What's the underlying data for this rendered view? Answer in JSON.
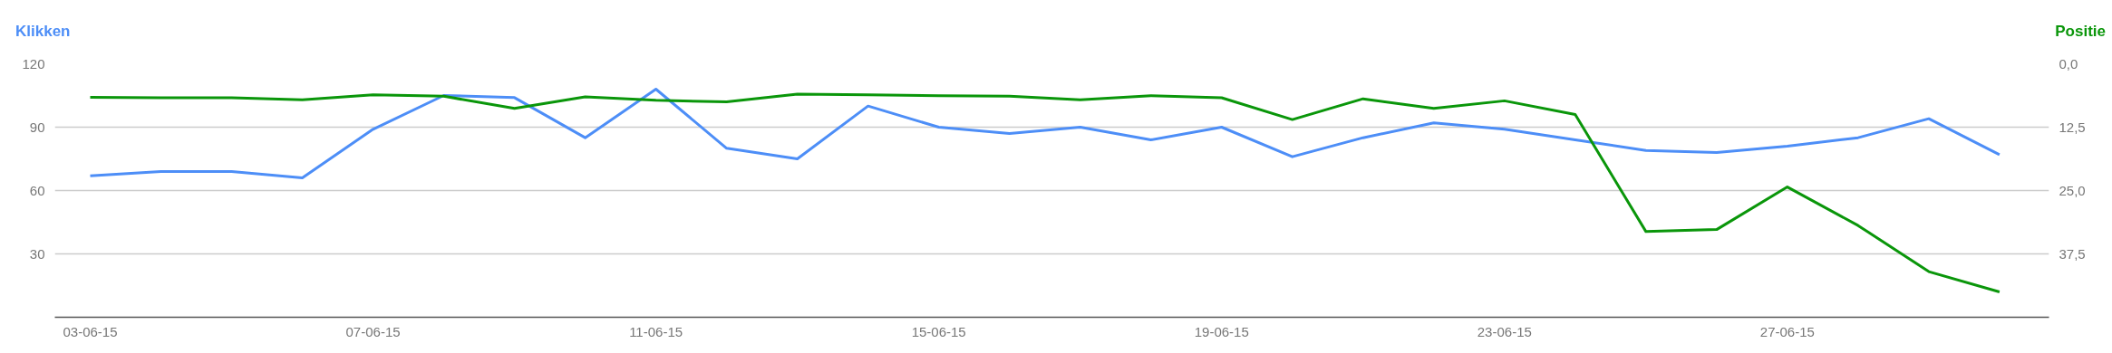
{
  "chart_data": {
    "type": "line",
    "ylabel": "Klikken",
    "y2label": "Positie",
    "categories": [
      "03-06-15",
      null,
      null,
      null,
      "07-06-15",
      null,
      null,
      null,
      "11-06-15",
      null,
      null,
      null,
      "15-06-15",
      null,
      null,
      null,
      "19-06-15",
      null,
      null,
      null,
      "23-06-15",
      null,
      null,
      null,
      "27-06-15",
      null,
      null,
      null
    ],
    "series": [
      {
        "color": "#4d8ef7",
        "values": [
          67,
          69,
          69,
          66,
          89,
          105,
          104,
          85,
          108,
          80,
          75,
          100,
          90,
          87,
          90,
          84,
          90,
          76,
          85,
          92,
          89,
          84,
          79,
          78,
          81,
          85,
          94,
          77
        ]
      },
      {
        "color": "#0a960a",
        "axis": "y2",
        "values": [
          6.6,
          6.7,
          6.7,
          7.1,
          6.1,
          6.4,
          8.8,
          6.5,
          7.2,
          7.5,
          6.0,
          6.1,
          6.3,
          6.4,
          7.1,
          6.3,
          6.7,
          11.0,
          6.9,
          8.8,
          7.3,
          10.0,
          33.1,
          32.7,
          24.3,
          31.9,
          41.0,
          45.0
        ]
      }
    ],
    "ylim": [
      0,
      120
    ],
    "yticks": [
      30,
      60,
      90,
      120
    ],
    "y2lim": [
      50,
      0
    ],
    "y2ticks": [
      {
        "value": 0,
        "label": "0,0"
      },
      {
        "value": 12.5,
        "label": "12,5"
      },
      {
        "value": 25,
        "label": "25,0"
      },
      {
        "value": 37.5,
        "label": "37,5"
      }
    ],
    "grid": "y",
    "marker": "none",
    "line_style": "solid"
  }
}
